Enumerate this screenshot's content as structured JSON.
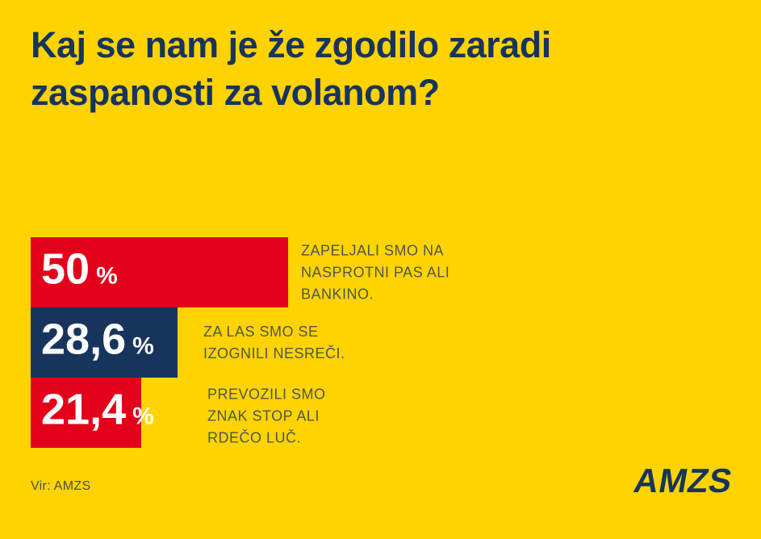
{
  "colors": {
    "background": "#ffd300",
    "brand_red": "#e2001a",
    "brand_navy": "#17355c",
    "value_text": "#ffffff",
    "caption_text": "#4d5749"
  },
  "header": {
    "title_line1": "Kaj se nam je že zgodilo zaradi",
    "title_line2": "zaspanosti za volanom?"
  },
  "chart_data": {
    "type": "bar",
    "orientation": "horizontal",
    "title": "Kaj se nam je že zgodilo zaradi zaspanosti za volanom?",
    "unit": "%",
    "xlim": [
      0,
      50
    ],
    "grid": false,
    "legend": false,
    "categories": [
      "Zapeljali smo na nasprotni pas ali bankino.",
      "Za las smo se izognili nesreči.",
      "Prevozili smo znak stop ali rdečo luč."
    ],
    "values": [
      50,
      28.6,
      21.4
    ],
    "bars": [
      {
        "value": 50,
        "value_label": "50",
        "percent_sign": "%",
        "color": "#e2001a",
        "caption_lines": [
          "ZAPELJALI SMO NA",
          "NASPROTNI PAS ALI",
          "BANKINO."
        ]
      },
      {
        "value": 28.6,
        "value_label": "28,6",
        "percent_sign": "%",
        "color": "#17355c",
        "caption_lines": [
          "ZA LAS SMO SE",
          "IZOGNILI NESREČI."
        ]
      },
      {
        "value": 21.4,
        "value_label": "21,4",
        "percent_sign": "%",
        "color": "#e2001a",
        "caption_lines": [
          "PREVOZILI SMO",
          "ZNAK STOP ALI",
          "RDEČO LUČ."
        ]
      }
    ]
  },
  "footer": {
    "source": "Vir: AMZS",
    "logo_text": "AMZS"
  }
}
